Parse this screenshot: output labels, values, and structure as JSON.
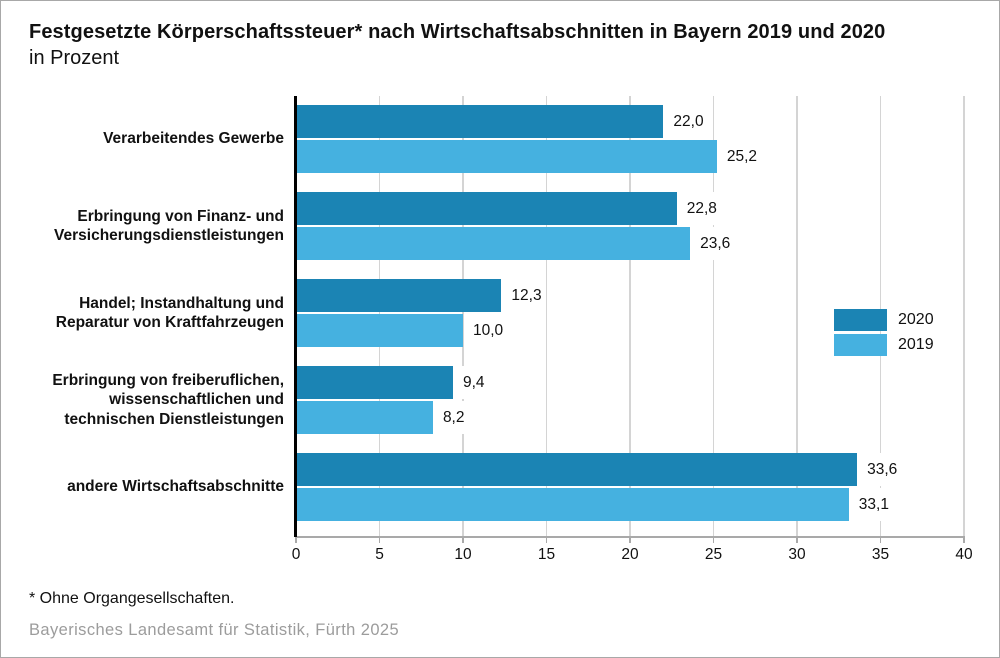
{
  "title": "Festgesetzte Körperschaftssteuer* nach Wirtschaftsabschnitten in Bayern 2019 und 2020",
  "subtitle": "in Prozent",
  "footnote": "* Ohne Organgesellschaften.",
  "source": "Bayerisches Landesamt für Statistik, Fürth 2025",
  "colors": {
    "series_2020": "#1b84b4",
    "series_2019": "#45b1e0",
    "gridline": "#d4d4d4",
    "axis_black": "#000000",
    "baseline_gray": "#a9a9a9",
    "source_text": "#9c9c9c"
  },
  "chart_data": {
    "type": "bar",
    "orientation": "horizontal",
    "title": "Festgesetzte Körperschaftssteuer* nach Wirtschaftsabschnitten in Bayern 2019 und 2020",
    "subtitle": "in Prozent",
    "xlabel": "",
    "ylabel": "",
    "xlim": [
      0,
      40
    ],
    "xticks": [
      0,
      5,
      10,
      15,
      20,
      25,
      30,
      35,
      40
    ],
    "xtick_labels": [
      "0",
      "5",
      "10",
      "15",
      "20",
      "25",
      "30",
      "35",
      "40"
    ],
    "grid": true,
    "legend_position": "right-middle",
    "categories": [
      [
        "Verarbeitendes Gewerbe"
      ],
      [
        "Erbringung von Finanz- und",
        "Versicherungsdienstleistungen"
      ],
      [
        "Handel; Instandhaltung und",
        "Reparatur von Kraftfahrzeugen"
      ],
      [
        "Erbringung von freiberuflichen,",
        "wissenschaftlichen und",
        "technischen Dienstleistungen"
      ],
      [
        "andere Wirtschaftsabschnitte"
      ]
    ],
    "series": [
      {
        "name": "2020",
        "color": "#1b84b4",
        "values": [
          22.0,
          22.8,
          12.3,
          9.4,
          33.6
        ],
        "labels": [
          "22,0",
          "22,8",
          "12,3",
          "9,4",
          "33,6"
        ]
      },
      {
        "name": "2019",
        "color": "#45b1e0",
        "values": [
          25.2,
          23.6,
          10.0,
          8.2,
          33.1
        ],
        "labels": [
          "25,2",
          "23,6",
          "10,0",
          "8,2",
          "33,1"
        ]
      }
    ]
  }
}
